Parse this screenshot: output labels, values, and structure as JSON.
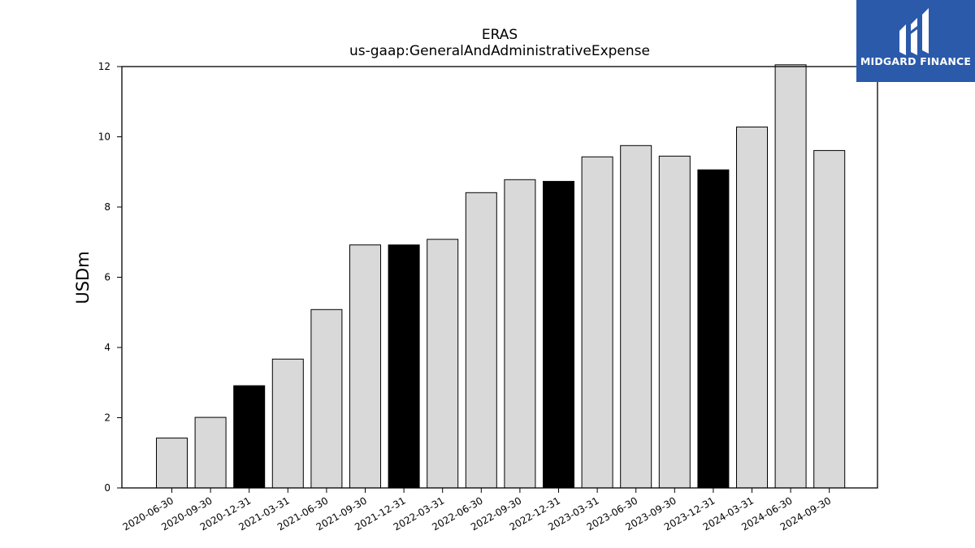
{
  "chart_data": {
    "type": "bar",
    "title": "ERAS",
    "subtitle": "us-gaap:GeneralAndAdministrativeExpense",
    "xlabel": "",
    "ylabel": "USDm",
    "ylim": [
      0,
      12
    ],
    "yticks": [
      "0",
      "2",
      "4",
      "6",
      "8",
      "10",
      "12"
    ],
    "categories": [
      "2020-06-30",
      "2020-09-30",
      "2020-12-31",
      "2021-03-31",
      "2021-06-30",
      "2021-09-30",
      "2021-12-31",
      "2022-03-31",
      "2022-06-30",
      "2022-09-30",
      "2022-12-31",
      "2023-03-31",
      "2023-06-30",
      "2023-09-30",
      "2023-12-31",
      "2024-03-31",
      "2024-06-30",
      "2024-09-30"
    ],
    "values": [
      1.42,
      2.01,
      2.91,
      3.67,
      5.08,
      6.92,
      6.92,
      7.08,
      8.41,
      8.78,
      8.73,
      9.43,
      9.75,
      9.45,
      9.06,
      10.28,
      12.05,
      9.61
    ],
    "highlighted": [
      false,
      false,
      true,
      false,
      false,
      false,
      true,
      false,
      false,
      false,
      true,
      false,
      false,
      false,
      true,
      false,
      false,
      false
    ],
    "colors": {
      "bar": "#d9d9d9",
      "highlight": "#000000",
      "edge": "#000000"
    },
    "grid": false,
    "legend": "none"
  },
  "logo": {
    "text": "MIDGARD FINANCE",
    "background": "#2b5aab"
  }
}
